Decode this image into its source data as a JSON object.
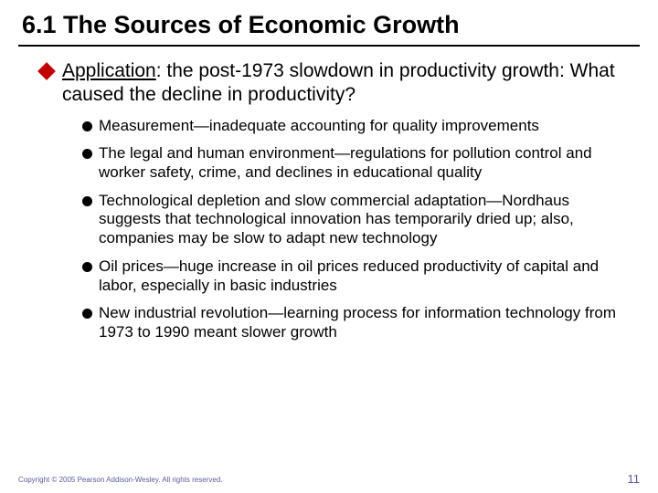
{
  "title": "6.1 The Sources of Economic Growth",
  "level1": {
    "leading_word": "Application",
    "rest": ": the post-1973 slowdown in productivity growth: What caused the decline in productivity?"
  },
  "bullets": [
    "Measurement—inadequate accounting for quality improvements",
    "The legal and human environment—regulations for pollution control and worker safety, crime, and declines in educational quality",
    "Technological depletion and slow commercial adaptation—Nordhaus suggests that technological innovation has temporarily dried up; also, companies may be slow to adapt new technology",
    "Oil prices—huge increase in oil prices reduced productivity of capital and labor, especially in basic industries",
    "New industrial revolution—learning process for information technology from 1973 to 1990 meant slower growth"
  ],
  "footer": {
    "copyright": "Copyright © 2005 Pearson Addison-Wesley. All rights reserved.",
    "page_number": "11"
  },
  "colors": {
    "diamond": "#c00000",
    "footer_text": "#5b5b9a",
    "rule": "#000000",
    "background": "#ffffff"
  }
}
